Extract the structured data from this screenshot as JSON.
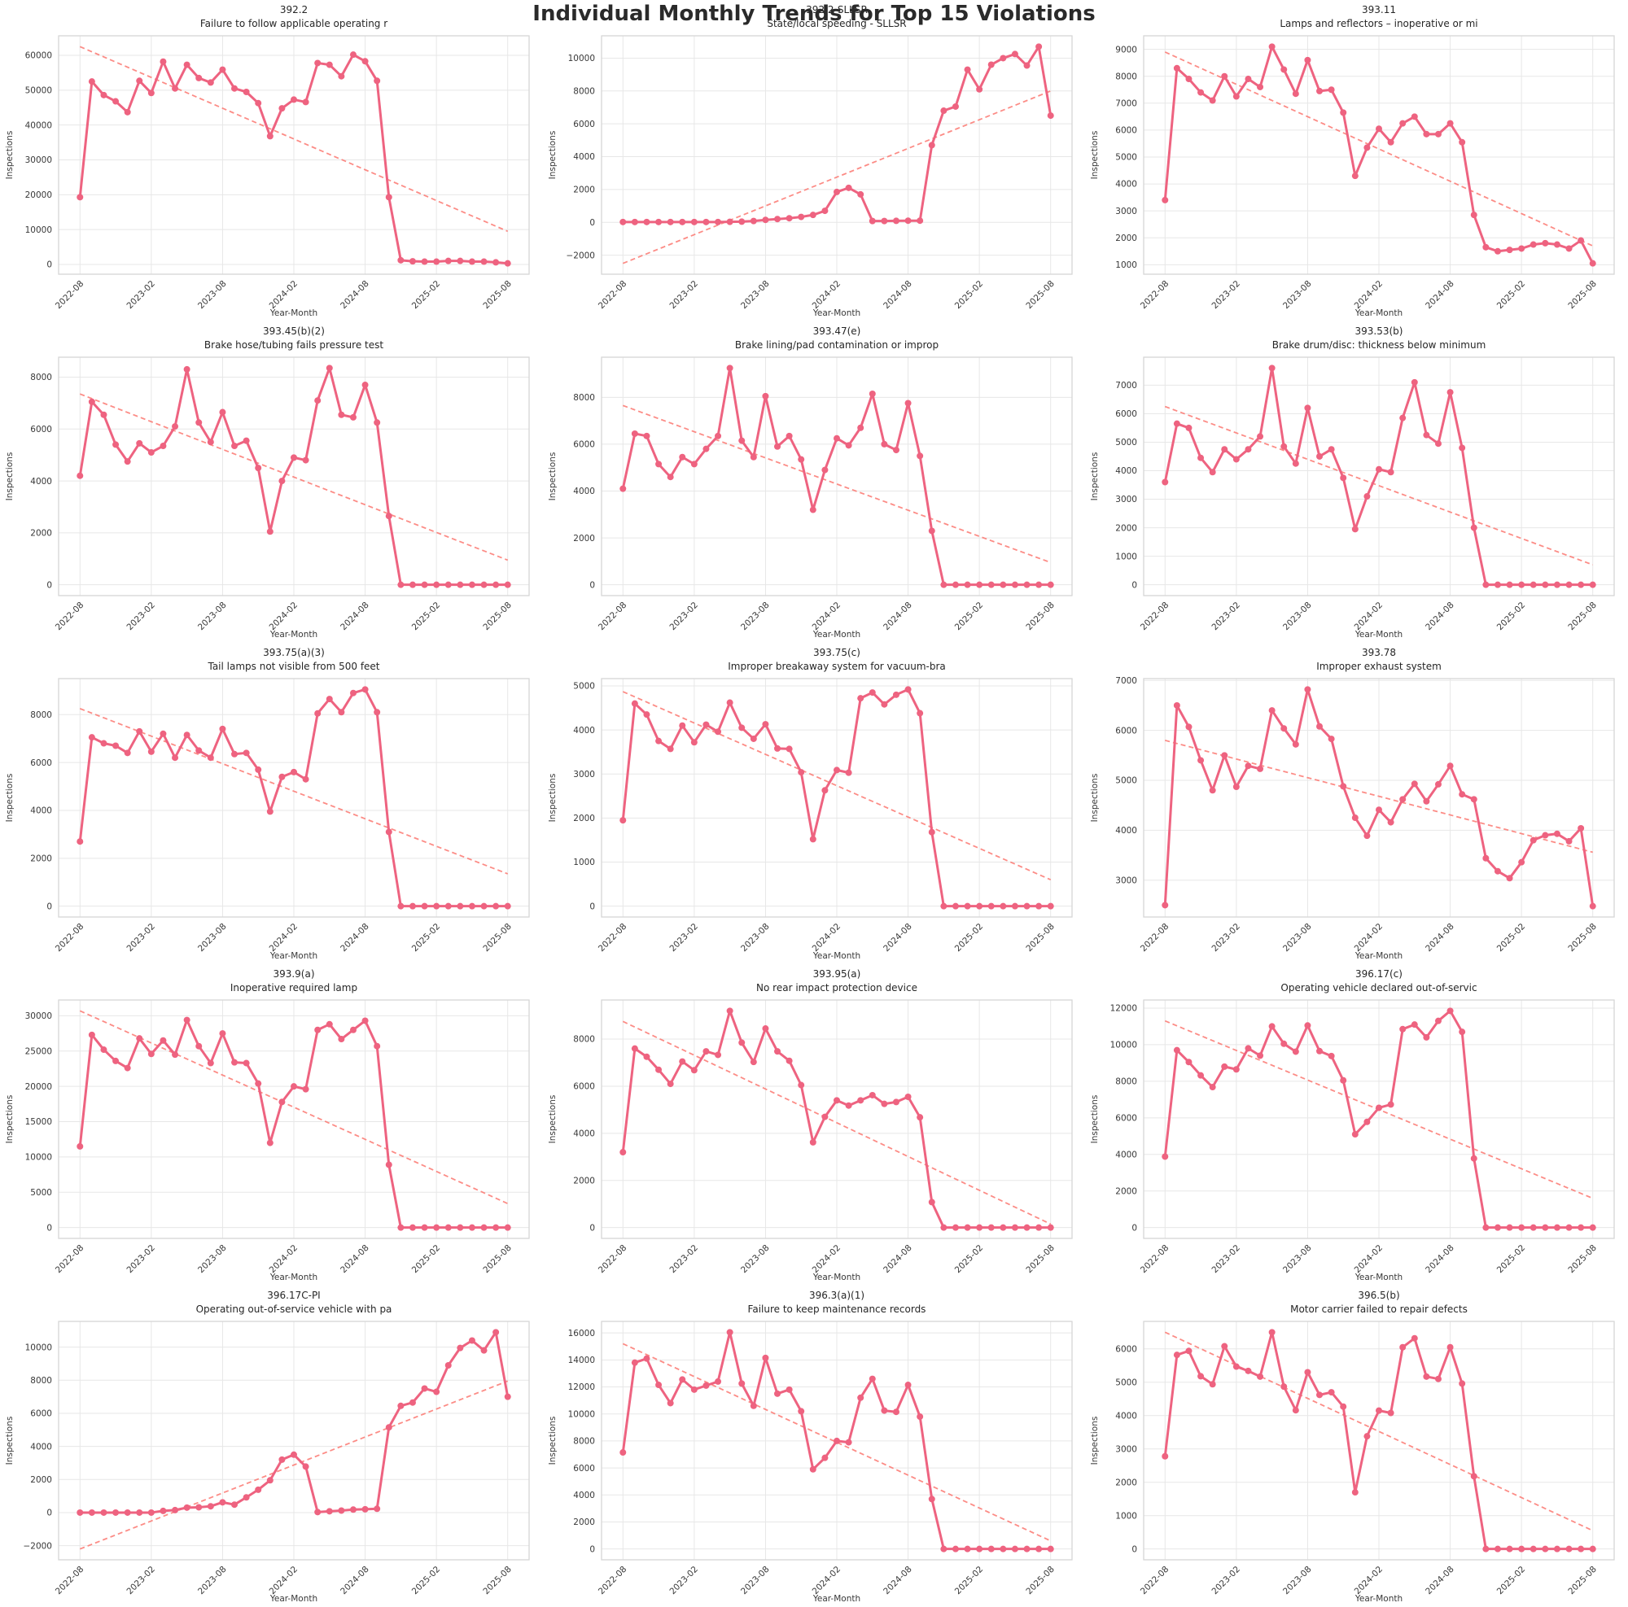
{
  "figure": {
    "title": "Individual Monthly Trends for Top 15 Violations",
    "xlabel": "Year-Month",
    "ylabel": "Inspections",
    "line_color": "#ee6380",
    "trend_color": "#fc7069",
    "grid_color": "#e7e7e7",
    "border_color": "#d6d6d6",
    "text_color": "#2a2a2a",
    "grid": true,
    "legend": "none",
    "x_tick_labels": [
      "2022-08",
      "2023-02",
      "2023-08",
      "2024-02",
      "2024-08",
      "2025-02",
      "2025-08"
    ],
    "x_tick_positions": [
      0,
      6,
      12,
      18,
      24,
      30,
      36
    ],
    "months": [
      "2022-08",
      "2022-09",
      "2022-10",
      "2022-11",
      "2022-12",
      "2023-01",
      "2023-02",
      "2023-03",
      "2023-04",
      "2023-05",
      "2023-06",
      "2023-07",
      "2023-08",
      "2023-09",
      "2023-10",
      "2023-11",
      "2023-12",
      "2024-01",
      "2024-02",
      "2024-03",
      "2024-04",
      "2024-05",
      "2024-06",
      "2024-07",
      "2024-08",
      "2024-09",
      "2024-10",
      "2024-11",
      "2024-12",
      "2025-01",
      "2025-02",
      "2025-03",
      "2025-04",
      "2025-05",
      "2025-06",
      "2025-07",
      "2025-08"
    ]
  },
  "chart_data": [
    {
      "type": "line",
      "code": "392.2",
      "title": "Failure to follow applicable operating r",
      "yticks": [
        0,
        10000,
        20000,
        30000,
        40000,
        50000,
        60000
      ],
      "trend": [
        62500,
        9500
      ],
      "values": [
        19300,
        52500,
        48600,
        46800,
        43700,
        52700,
        49200,
        58200,
        50500,
        57300,
        53500,
        52200,
        55900,
        50500,
        49500,
        46300,
        36800,
        44800,
        47300,
        46600,
        57800,
        57300,
        54000,
        60200,
        58300,
        52700,
        19300,
        1200,
        900,
        800,
        800,
        1000,
        1000,
        800,
        800,
        600,
        300
      ]
    },
    {
      "type": "line",
      "code": "392.2-SLLSR",
      "title": "State/local speeding - SLLSR",
      "yticks": [
        -2000,
        0,
        2000,
        4000,
        6000,
        8000,
        10000
      ],
      "trend": [
        -2500,
        8000
      ],
      "values": [
        20,
        20,
        20,
        20,
        20,
        20,
        20,
        20,
        20,
        30,
        40,
        80,
        150,
        200,
        250,
        330,
        450,
        700,
        1850,
        2100,
        1700,
        80,
        80,
        90,
        100,
        100,
        4700,
        6800,
        7050,
        9300,
        8100,
        9600,
        10000,
        10250,
        9550,
        10700,
        6500
      ]
    },
    {
      "type": "line",
      "code": "393.11",
      "title": "Lamps and reflectors – inoperative or mi",
      "yticks": [
        1000,
        2000,
        3000,
        4000,
        5000,
        6000,
        7000,
        8000,
        9000
      ],
      "trend": [
        8900,
        1700
      ],
      "values": [
        3400,
        8300,
        7900,
        7400,
        7100,
        8000,
        7250,
        7900,
        7600,
        9100,
        8250,
        7350,
        8600,
        7450,
        7500,
        6650,
        4300,
        5350,
        6050,
        5550,
        6250,
        6500,
        5850,
        5850,
        6250,
        5550,
        2850,
        1650,
        1500,
        1550,
        1600,
        1750,
        1800,
        1750,
        1600,
        1900,
        1050
      ]
    },
    {
      "type": "line",
      "code": "393.45(b)(2)",
      "title": "Brake hose/tubing fails pressure test",
      "yticks": [
        0,
        2000,
        4000,
        6000,
        8000
      ],
      "trend": [
        7350,
        950
      ],
      "values": [
        4200,
        7050,
        6550,
        5400,
        4750,
        5450,
        5100,
        5350,
        6100,
        8300,
        6250,
        5500,
        6650,
        5350,
        5550,
        4500,
        2050,
        4000,
        4900,
        4800,
        7100,
        8350,
        6550,
        6450,
        7700,
        6250,
        2650,
        0,
        0,
        0,
        0,
        0,
        0,
        0,
        0,
        0,
        0
      ]
    },
    {
      "type": "line",
      "code": "393.47(e)",
      "title": "Brake lining/pad contamination or improp",
      "yticks": [
        0,
        2000,
        4000,
        6000,
        8000
      ],
      "trend": [
        7650,
        950
      ],
      "values": [
        4100,
        6450,
        6350,
        5150,
        4600,
        5450,
        5150,
        5800,
        6350,
        9250,
        6150,
        5450,
        8050,
        5900,
        6350,
        5350,
        3200,
        4900,
        6250,
        5950,
        6700,
        8150,
        6000,
        5750,
        7750,
        5500,
        2300,
        0,
        0,
        0,
        0,
        0,
        0,
        0,
        0,
        0,
        0
      ]
    },
    {
      "type": "line",
      "code": "393.53(b)",
      "title": "Brake drum/disc: thickness below minimum",
      "yticks": [
        0,
        1000,
        2000,
        3000,
        4000,
        5000,
        6000,
        7000
      ],
      "trend": [
        6250,
        700
      ],
      "values": [
        3600,
        5650,
        5500,
        4450,
        3950,
        4750,
        4400,
        4750,
        5200,
        7600,
        4850,
        4250,
        6200,
        4500,
        4750,
        3750,
        1950,
        3100,
        4050,
        3950,
        5850,
        7100,
        5250,
        4950,
        6750,
        4800,
        2000,
        0,
        0,
        0,
        0,
        0,
        0,
        0,
        0,
        0,
        0
      ]
    },
    {
      "type": "line",
      "code": "393.75(a)(3)",
      "title": "Tail lamps not visible from 500 feet",
      "yticks": [
        0,
        2000,
        4000,
        6000,
        8000
      ],
      "trend": [
        8250,
        1350
      ],
      "values": [
        2700,
        7050,
        6800,
        6700,
        6400,
        7300,
        6450,
        7200,
        6200,
        7150,
        6500,
        6200,
        7400,
        6350,
        6400,
        5700,
        3950,
        5400,
        5600,
        5300,
        8050,
        8650,
        8100,
        8900,
        9050,
        8100,
        3100,
        0,
        0,
        0,
        0,
        0,
        0,
        0,
        0,
        0,
        0
      ]
    },
    {
      "type": "line",
      "code": "393.75(c)",
      "title": "Improper breakaway system for vacuum-bra",
      "yticks": [
        0,
        1000,
        2000,
        3000,
        4000,
        5000
      ],
      "trend": [
        4870,
        600
      ],
      "values": [
        1950,
        4600,
        4350,
        3750,
        3570,
        4100,
        3720,
        4120,
        3960,
        4620,
        4050,
        3800,
        4130,
        3580,
        3570,
        3040,
        1520,
        2630,
        3090,
        3030,
        4720,
        4850,
        4580,
        4800,
        4920,
        4380,
        1680,
        0,
        0,
        0,
        0,
        0,
        0,
        0,
        0,
        0,
        0
      ]
    },
    {
      "type": "line",
      "code": "393.78",
      "title": "Improper exhaust system",
      "yticks": [
        3000,
        4000,
        5000,
        6000,
        7000
      ],
      "trend": [
        5800,
        3560
      ],
      "values": [
        2500,
        6500,
        6070,
        5400,
        4800,
        5500,
        4870,
        5290,
        5230,
        6400,
        6040,
        5720,
        6820,
        6080,
        5830,
        4880,
        4250,
        3890,
        4410,
        4160,
        4620,
        4930,
        4580,
        4920,
        5290,
        4720,
        4620,
        3440,
        3180,
        3040,
        3360,
        3800,
        3900,
        3930,
        3780,
        4040,
        2480
      ]
    },
    {
      "type": "line",
      "code": "393.9(a)",
      "title": "Inoperative required lamp",
      "yticks": [
        0,
        5000,
        10000,
        15000,
        20000,
        25000,
        30000
      ],
      "trend": [
        30700,
        3400
      ],
      "values": [
        11500,
        27300,
        25200,
        23600,
        22600,
        26800,
        24600,
        26500,
        24500,
        29400,
        25700,
        23300,
        27500,
        23400,
        23300,
        20400,
        12000,
        17800,
        20000,
        19600,
        28000,
        28800,
        26700,
        28000,
        29300,
        25700,
        8900,
        0,
        0,
        0,
        0,
        0,
        0,
        0,
        0,
        0,
        0
      ]
    },
    {
      "type": "line",
      "code": "393.95(a)",
      "title": "No rear impact protection device",
      "yticks": [
        0,
        2000,
        4000,
        6000,
        8000
      ],
      "trend": [
        8750,
        150
      ],
      "values": [
        3200,
        7600,
        7250,
        6700,
        6100,
        7050,
        6680,
        7480,
        7330,
        9200,
        7850,
        7030,
        8450,
        7480,
        7080,
        6050,
        3620,
        4700,
        5400,
        5180,
        5400,
        5620,
        5250,
        5330,
        5550,
        4680,
        1080,
        0,
        0,
        0,
        0,
        0,
        0,
        0,
        0,
        0,
        0
      ]
    },
    {
      "type": "line",
      "code": "396.17(c)",
      "title": "Operating vehicle declared out-of-servic",
      "yticks": [
        0,
        2000,
        4000,
        6000,
        8000,
        10000,
        12000
      ],
      "trend": [
        11300,
        1600
      ],
      "values": [
        3880,
        9700,
        9050,
        8320,
        7680,
        8800,
        8650,
        9800,
        9400,
        11000,
        10050,
        9620,
        11050,
        9650,
        9380,
        8050,
        5100,
        5780,
        6550,
        6730,
        10850,
        11100,
        10400,
        11300,
        11850,
        10700,
        3780,
        0,
        0,
        0,
        0,
        0,
        0,
        0,
        0,
        0,
        0
      ]
    },
    {
      "type": "line",
      "code": "396.17C-PI",
      "title": "Operating out-of-service vehicle with pa",
      "yticks": [
        -2000,
        0,
        2000,
        4000,
        6000,
        8000,
        10000
      ],
      "trend": [
        -2200,
        7950
      ],
      "values": [
        0,
        0,
        0,
        0,
        0,
        0,
        0,
        100,
        150,
        300,
        320,
        380,
        620,
        480,
        920,
        1380,
        1950,
        3200,
        3500,
        2780,
        30,
        80,
        120,
        180,
        200,
        230,
        5150,
        6450,
        6650,
        7500,
        7300,
        8900,
        9950,
        10400,
        9800,
        10900,
        7000
      ]
    },
    {
      "type": "line",
      "code": "396.3(a)(1)",
      "title": "Failure to keep maintenance records",
      "yticks": [
        0,
        2000,
        4000,
        6000,
        8000,
        10000,
        12000,
        14000,
        16000
      ],
      "trend": [
        15200,
        600
      ],
      "values": [
        7150,
        13800,
        14100,
        12150,
        10800,
        12550,
        11800,
        12100,
        12400,
        16050,
        12250,
        10600,
        14150,
        11500,
        11800,
        10200,
        5900,
        6750,
        8000,
        7900,
        11200,
        12600,
        10250,
        10150,
        12150,
        9800,
        3700,
        0,
        0,
        0,
        0,
        0,
        0,
        0,
        0,
        0,
        0
      ]
    },
    {
      "type": "line",
      "code": "396.5(b)",
      "title": "Motor carrier failed to repair defects",
      "yticks": [
        0,
        1000,
        2000,
        3000,
        4000,
        5000,
        6000
      ],
      "trend": [
        6500,
        550
      ],
      "values": [
        2780,
        5820,
        5940,
        5180,
        4940,
        6080,
        5470,
        5340,
        5170,
        6500,
        4870,
        4160,
        5300,
        4620,
        4700,
        4270,
        1700,
        3380,
        4150,
        4080,
        6050,
        6320,
        5170,
        5100,
        6050,
        4960,
        2180,
        0,
        0,
        0,
        0,
        0,
        0,
        0,
        0,
        0,
        0
      ]
    }
  ]
}
